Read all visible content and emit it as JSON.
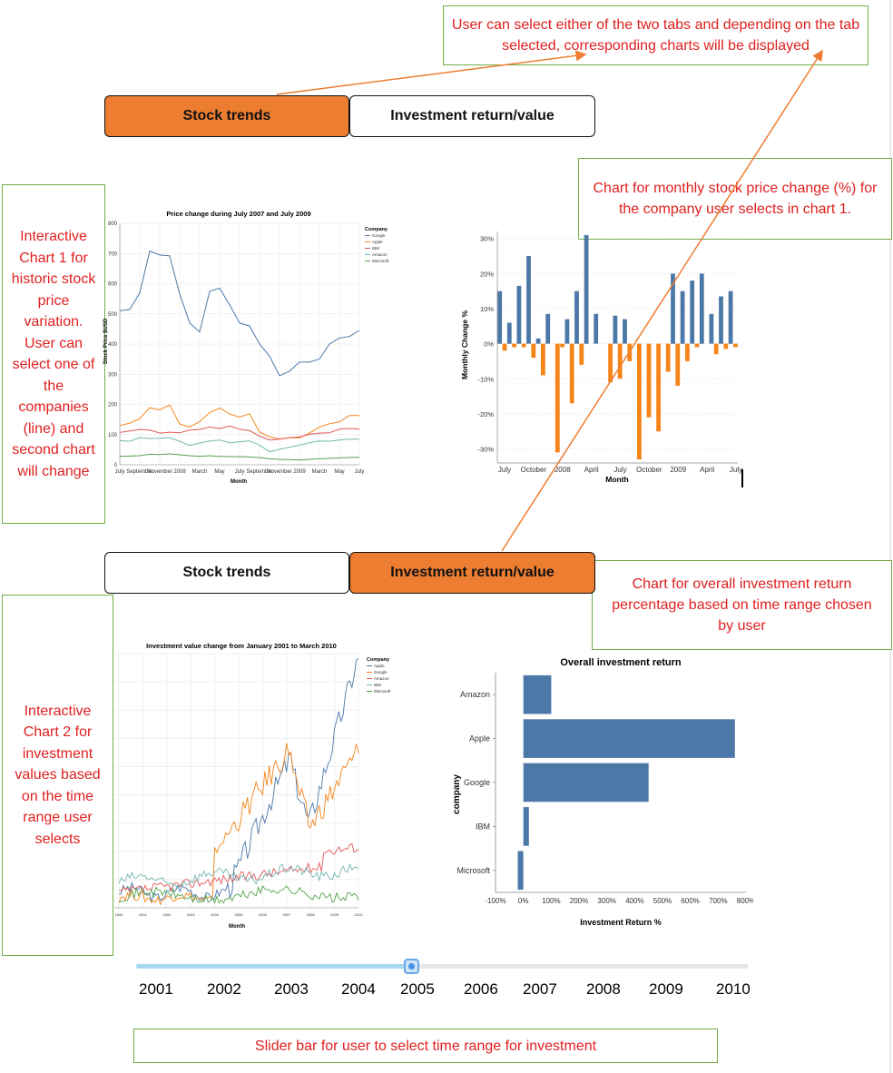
{
  "annotations": {
    "tabs_note": "User can select either of the two tabs and depending on the tab selected, corresponding charts will be displayed",
    "chart1_note": "Interactive Chart 1 for historic stock price variation. User can select one of the companies (line) and second chart will change",
    "monthly_note": "Chart for monthly stock price change (%) for the company user selects in chart 1.",
    "overall_note": "Chart for overall investment return percentage based on time range chosen by user",
    "chart2_note": "Interactive Chart 2 for investment values based on the time range user selects",
    "slider_note": "Slider bar for user to select time range for investment"
  },
  "tabs_top": {
    "stock": "Stock trends",
    "invest": "Investment return/value",
    "active": "stock"
  },
  "tabs_bottom": {
    "stock": "Stock trends",
    "invest": "Investment return/value",
    "active": "invest"
  },
  "colors": {
    "active_tab": "#ed7d31",
    "callout_border": "#70ad47",
    "callout_text": "#e02020",
    "positive": "#4c78a8",
    "negative": "#f58518"
  },
  "chart_data": [
    {
      "type": "line",
      "title": "Price change during July 2007 and July 2009",
      "xlabel": "Month",
      "ylabel": "Stock Price $USD",
      "ylim": [
        0,
        800
      ],
      "yticks": [
        "0",
        "100",
        "200",
        "300",
        "400",
        "500",
        "600",
        "700",
        "800"
      ],
      "xticks": [
        "July",
        "September",
        "November",
        "2008",
        "March",
        "May",
        "July",
        "September",
        "November",
        "2009",
        "March",
        "May",
        "July"
      ],
      "legend_title": "Company",
      "legend_placement": "top-right",
      "series": [
        {
          "name": "Google",
          "color": "#4c78a8",
          "values": [
            510,
            515,
            570,
            708,
            695,
            692,
            565,
            470,
            440,
            575,
            585,
            530,
            470,
            460,
            400,
            360,
            295,
            310,
            340,
            340,
            350,
            400,
            420,
            425,
            445
          ]
        },
        {
          "name": "Apple",
          "color": "#f58518",
          "values": [
            130,
            138,
            153,
            189,
            182,
            198,
            135,
            125,
            143,
            173,
            188,
            168,
            158,
            169,
            108,
            93,
            85,
            90,
            89,
            105,
            125,
            136,
            142,
            163,
            163
          ]
        },
        {
          "name": "IBM",
          "color": "#e45756",
          "values": [
            107,
            112,
            117,
            115,
            105,
            108,
            106,
            115,
            117,
            125,
            120,
            128,
            118,
            113,
            95,
            82,
            85,
            90,
            92,
            101,
            105,
            106,
            118,
            120,
            118
          ]
        },
        {
          "name": "Amazon",
          "color": "#72b7b2",
          "values": [
            80,
            78,
            90,
            87,
            88,
            90,
            78,
            64,
            72,
            79,
            82,
            73,
            76,
            79,
            65,
            43,
            51,
            58,
            65,
            73,
            79,
            78,
            82,
            85,
            85
          ]
        },
        {
          "name": "Microsoft",
          "color": "#54a24b",
          "values": [
            28,
            29,
            30,
            35,
            34,
            36,
            33,
            30,
            28,
            30,
            28,
            27,
            27,
            26,
            24,
            20,
            18,
            17,
            16,
            18,
            20,
            21,
            23,
            24,
            25
          ]
        }
      ]
    },
    {
      "type": "bar",
      "title": "",
      "xlabel": "Month",
      "ylabel": "Monthly Change %",
      "ylim": [
        -34,
        32
      ],
      "yticks": [
        "-30%",
        "-20%",
        "-10%",
        "0%",
        "10%",
        "20%",
        "30%"
      ],
      "xticks": [
        "July",
        "October",
        "2008",
        "April",
        "July",
        "October",
        "2009",
        "April",
        "July"
      ],
      "values": [
        15,
        -2,
        6,
        -1,
        16.5,
        -1,
        25,
        -4,
        1.5,
        -9,
        8.5,
        0,
        -31,
        -1,
        7,
        -17,
        15,
        -6,
        31,
        0,
        8.5,
        0,
        0,
        -11,
        8,
        -10,
        7,
        -5,
        0,
        -33,
        0,
        -21,
        0,
        -25,
        0,
        -8,
        20,
        -12,
        15,
        -5,
        18,
        -1,
        20,
        0,
        8.5,
        -3,
        13.5,
        -1.5,
        15,
        -1
      ]
    },
    {
      "type": "line",
      "title": "Investment value change from January 2001 to March 2010",
      "xlabel": "Month",
      "ylabel": "",
      "xticks": [
        "2000",
        "2001",
        "2002",
        "2003",
        "2004",
        "2005",
        "2006",
        "2007",
        "2008",
        "2009",
        "2010"
      ],
      "legend_title": "Company",
      "legend_placement": "top-right",
      "series": [
        {
          "name": "Apple",
          "color": "#4c78a8"
        },
        {
          "name": "Google",
          "color": "#f58518"
        },
        {
          "name": "Amazon",
          "color": "#e45756"
        },
        {
          "name": "IBM",
          "color": "#72b7b2"
        },
        {
          "name": "Microsoft",
          "color": "#54a24b"
        }
      ]
    },
    {
      "type": "bar",
      "title": "Overall investment return",
      "xlabel": "Investment Return %",
      "ylabel": "company",
      "xlim": [
        -100,
        800
      ],
      "xticks": [
        "-100%",
        "0%",
        "100%",
        "200%",
        "300%",
        "400%",
        "500%",
        "600%",
        "700%",
        "800%"
      ],
      "categories": [
        "Amazon",
        "Apple",
        "Google",
        "IBM",
        "Microsoft"
      ],
      "values": [
        100,
        760,
        450,
        20,
        -20
      ]
    }
  ],
  "slider": {
    "years": [
      "2001",
      "2002",
      "2003",
      "2004",
      "2005",
      "2006",
      "2007",
      "2008",
      "2009",
      "2010"
    ],
    "value": "2005"
  }
}
